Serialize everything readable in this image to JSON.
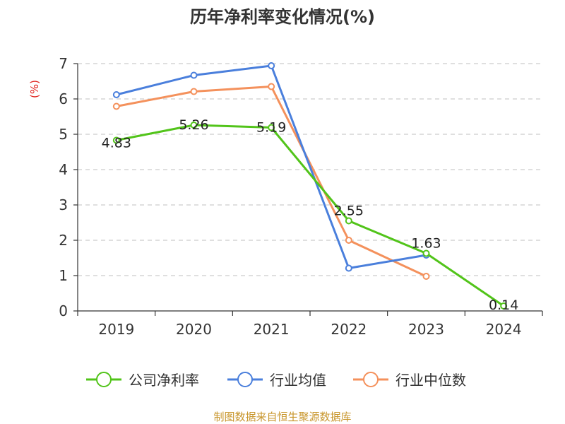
{
  "chart_data": {
    "type": "line",
    "title": "历年净利率变化情况(%)",
    "ylabel": "(%)",
    "xlabel": "",
    "categories": [
      "2019",
      "2020",
      "2021",
      "2022",
      "2023",
      "2024"
    ],
    "ylim": [
      0,
      7
    ],
    "yticks": [
      0,
      1,
      2,
      3,
      4,
      5,
      6,
      7
    ],
    "grid": true,
    "legend_position": "bottom",
    "series": [
      {
        "name": "公司净利率",
        "color": "#52c41a",
        "values": [
          4.83,
          5.26,
          5.19,
          2.55,
          1.63,
          0.14
        ],
        "labels": [
          "4.83",
          "5.26",
          "5.19",
          "2.55",
          "1.63",
          "0.14"
        ]
      },
      {
        "name": "行业均值",
        "color": "#4a7fdc",
        "values": [
          6.12,
          6.67,
          6.94,
          1.21,
          1.58,
          null
        ]
      },
      {
        "name": "行业中位数",
        "color": "#f4915c",
        "values": [
          5.79,
          6.21,
          6.35,
          2.0,
          0.98,
          null
        ]
      }
    ]
  },
  "source": "制图数据来自恒生聚源数据库",
  "colors": {
    "axis": "#333333",
    "grid": "#cccccc",
    "unit": "#e0201b",
    "source": "#c8962c"
  }
}
